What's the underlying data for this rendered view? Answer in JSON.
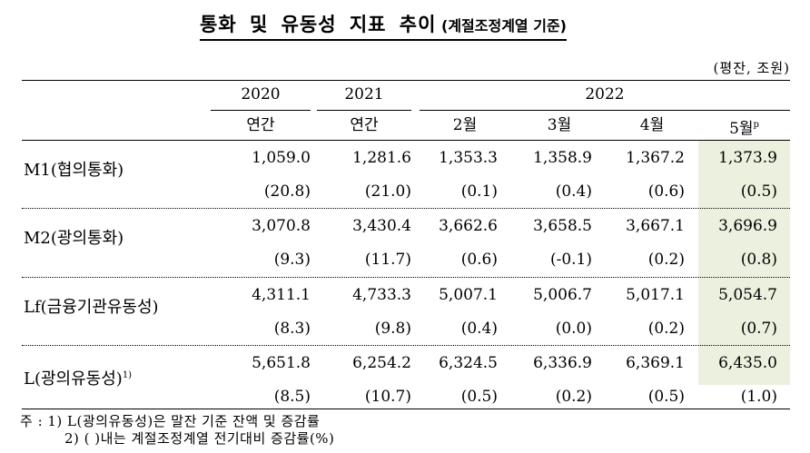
{
  "title": {
    "main": "통화 및 유동성 지표 추이",
    "sub": " (계절조정계열 기준)"
  },
  "unit": "(평잔, 조원)",
  "header": {
    "years": [
      "2020",
      "2021",
      "2022"
    ],
    "periods": [
      "연간",
      "연간",
      "2월",
      "3월",
      "4월",
      "5월"
    ],
    "preliminary_mark": "p"
  },
  "highlight_color": "#EBF1DE",
  "rows": [
    {
      "label": "M1(협의통화)",
      "footnote": "",
      "values": [
        "1,059.0",
        "1,281.6",
        "1,353.3",
        "1,358.9",
        "1,367.2",
        "1,373.9"
      ],
      "changes": [
        "(20.8)",
        "(21.0)",
        "(0.1)",
        "(0.4)",
        "(0.6)",
        "(0.5)"
      ]
    },
    {
      "label": "M2(광의통화)",
      "footnote": "",
      "values": [
        "3,070.8",
        "3,430.4",
        "3,662.6",
        "3,658.5",
        "3,667.1",
        "3,696.9"
      ],
      "changes": [
        "(9.3)",
        "(11.7)",
        "(0.6)",
        "(-0.1)",
        "(0.2)",
        "(0.8)"
      ]
    },
    {
      "label": "Lf(금융기관유동성)",
      "footnote": "",
      "values": [
        "4,311.1",
        "4,733.3",
        "5,007.1",
        "5,006.7",
        "5,017.1",
        "5,054.7"
      ],
      "changes": [
        "(8.3)",
        "(9.8)",
        "(0.4)",
        "(0.0)",
        "(0.2)",
        "(0.7)"
      ]
    },
    {
      "label": "L(광의유동성)",
      "footnote": "1)",
      "values": [
        "5,651.8",
        "6,254.2",
        "6,324.5",
        "6,336.9",
        "6,369.1",
        "6,435.0"
      ],
      "changes": [
        "(8.5)",
        "(10.7)",
        "(0.5)",
        "(0.2)",
        "(0.5)",
        "(1.0)"
      ]
    }
  ],
  "notes": [
    "주 :  1) L(광의유동성)은 말잔 기준 잔액 및 증감률",
    "2) (     )내는 계절조정계열 전기대비 증감률(%)"
  ]
}
